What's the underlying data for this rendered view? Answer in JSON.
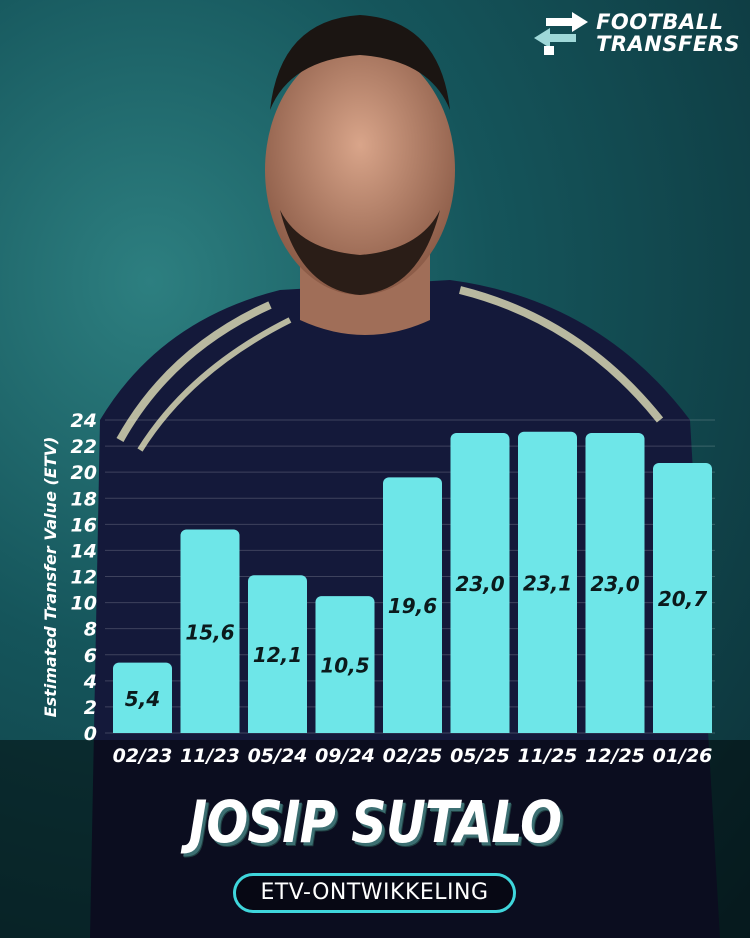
{
  "brand": {
    "line1": "FOOTBALL",
    "line2": "TRANSFERS",
    "icon": "transfer-arrows-icon"
  },
  "player": {
    "name": "JOSIP SUTALO"
  },
  "subtitle": "ETV-ONTWIKKELING",
  "colors": {
    "bar": "#6ee6e8",
    "accent": "#3fd6dc",
    "label": "#0b1a1c"
  },
  "chart_data": {
    "type": "bar",
    "categories": [
      "02/23",
      "11/23",
      "05/24",
      "09/24",
      "02/25",
      "05/25",
      "11/25",
      "12/25",
      "01/26"
    ],
    "values": [
      5.4,
      15.6,
      12.1,
      10.5,
      19.6,
      23.0,
      23.1,
      23.0,
      20.7
    ],
    "value_labels": [
      "5,4",
      "15,6",
      "12,1",
      "10,5",
      "19,6",
      "23,0",
      "23,1",
      "23,0",
      "20,7"
    ],
    "ylabel": "Estimated Transfer Value (ETV)",
    "xlabel": "",
    "ylim": [
      0,
      24
    ],
    "yticks": [
      0,
      2,
      4,
      6,
      8,
      10,
      12,
      14,
      16,
      18,
      20,
      22,
      24
    ],
    "grid": true
  }
}
